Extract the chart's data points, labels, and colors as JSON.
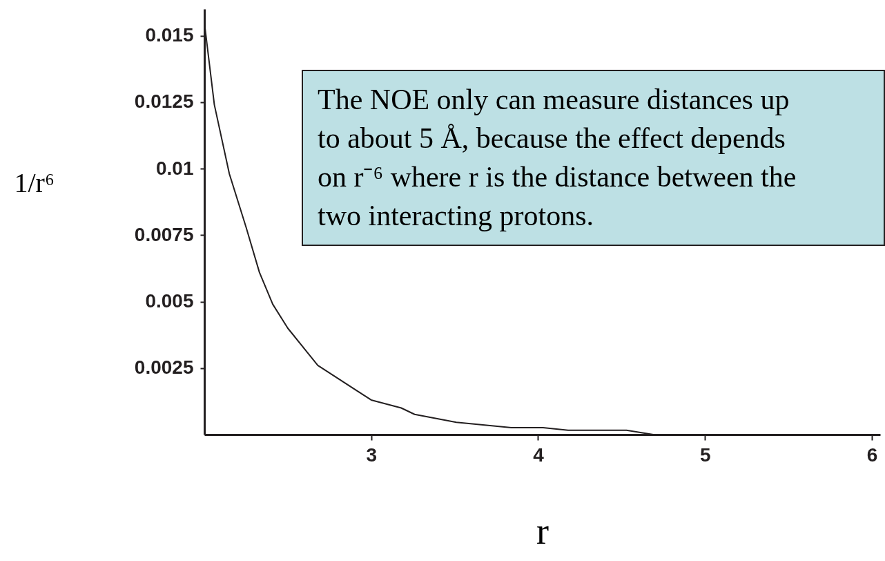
{
  "chart_data": {
    "type": "line",
    "xlabel": "r",
    "ylabel": "1/r⁶",
    "x": [
      2.0,
      2.06,
      2.15,
      2.25,
      2.33,
      2.41,
      2.5,
      2.68,
      3.0,
      3.18,
      3.26,
      3.51,
      3.84,
      4.03,
      4.18,
      4.53,
      4.69,
      6.0
    ],
    "series": [
      {
        "color": "#231f20",
        "values": [
          0.0155,
          0.0124,
          0.0098,
          0.0078,
          0.0061,
          0.0049,
          0.004,
          0.0026,
          0.0013,
          0.001,
          0.00076,
          0.00046,
          0.00026,
          0.00026,
          0.00016,
          0.00016,
          0,
          0
        ]
      }
    ],
    "xlim": [
      2,
      6.05
    ],
    "ylim": [
      0,
      0.016
    ],
    "xticks": [
      3,
      4,
      5,
      6
    ],
    "yticks": [
      0.0025,
      0.005,
      0.0075,
      0.01,
      0.0125,
      0.015
    ],
    "grid": false,
    "marker": "none",
    "line_style": "solid",
    "annotations": [
      "The NOE only can measure distances up\nto about 5 Å, because the effect depends\non r⁻⁶ where r is the distance between the\ntwo interacting protons."
    ]
  }
}
